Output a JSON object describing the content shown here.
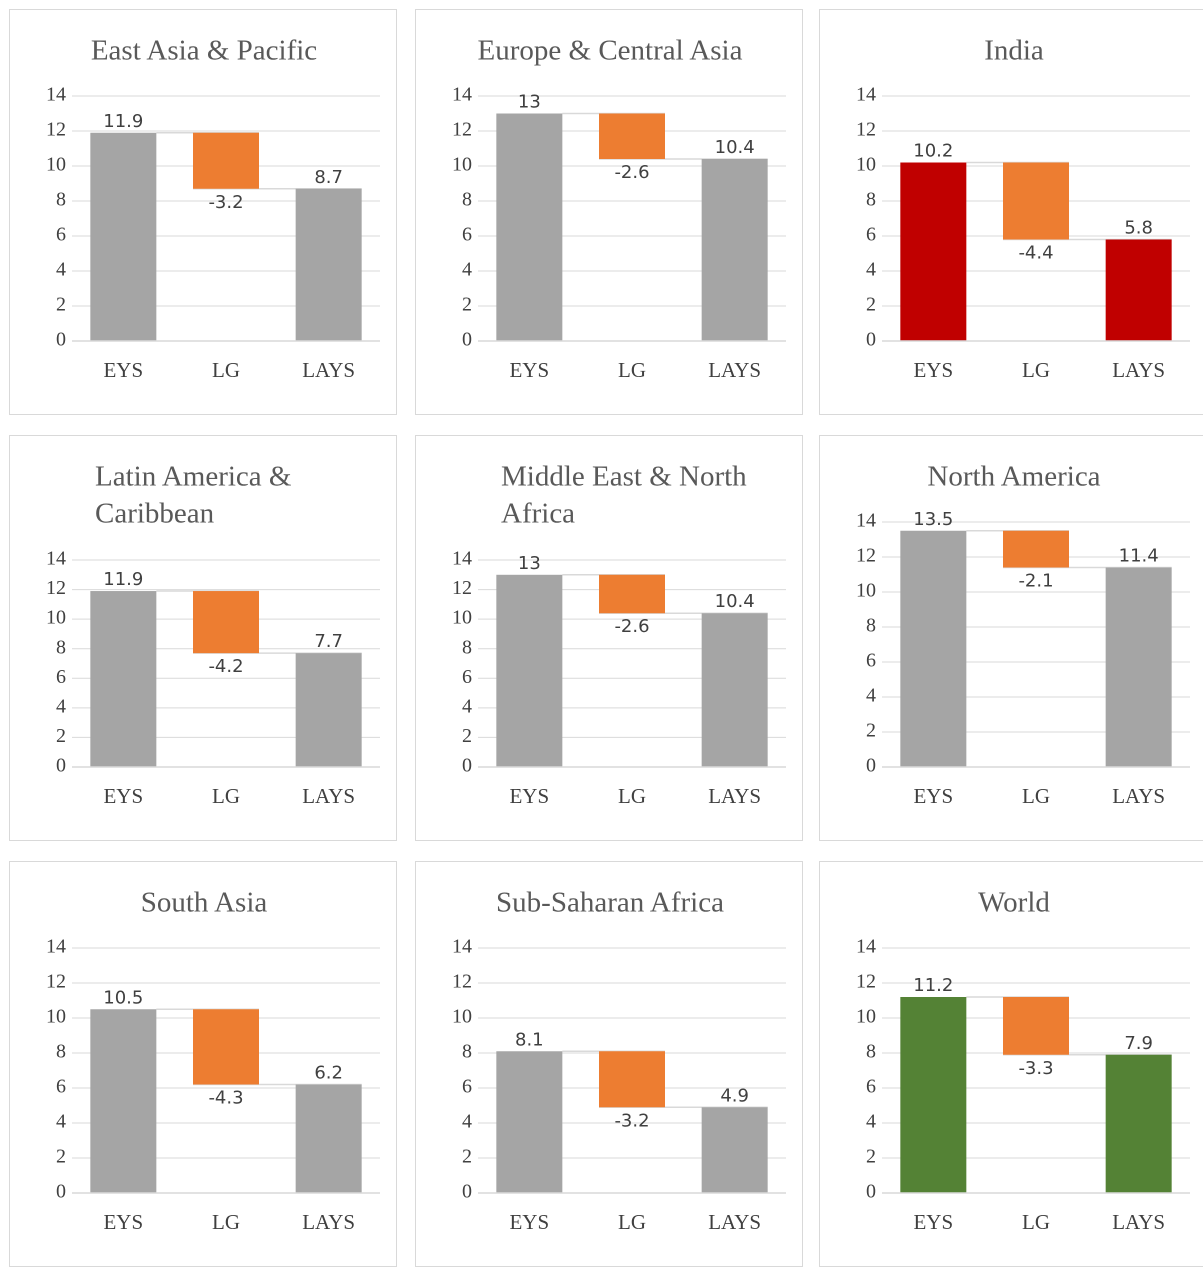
{
  "colors": {
    "gray": "#a5a5a5",
    "orange": "#ed7d31",
    "red": "#c00000",
    "green": "#548235"
  },
  "chart_data": [
    {
      "type": "waterfall",
      "title": [
        "East Asia & Pacific"
      ],
      "categories": [
        "EYS",
        "LG",
        "LAYS"
      ],
      "values": [
        11.9,
        -3.2,
        8.7
      ],
      "labels": [
        "11.9",
        "-3.2",
        "8.7"
      ],
      "ylim": [
        0,
        14
      ],
      "yticks": [
        0,
        2,
        4,
        6,
        8,
        10,
        12,
        14
      ],
      "ytick_labels": [
        "0",
        "2",
        "4",
        "6",
        "8",
        "10",
        "12",
        "14"
      ],
      "grid": true,
      "total_color": "#a5a5a5",
      "change_color": "#ed7d31"
    },
    {
      "type": "waterfall",
      "title": [
        "Europe & Central Asia"
      ],
      "categories": [
        "EYS",
        "LG",
        "LAYS"
      ],
      "values": [
        13,
        -2.6,
        10.4
      ],
      "labels": [
        "13",
        "-2.6",
        "10.4"
      ],
      "ylim": [
        0,
        14
      ],
      "yticks": [
        0,
        2,
        4,
        6,
        8,
        10,
        12,
        14
      ],
      "ytick_labels": [
        "0",
        "2",
        "4",
        "6",
        "8",
        "10",
        "12",
        "14"
      ],
      "grid": true,
      "total_color": "#a5a5a5",
      "change_color": "#ed7d31"
    },
    {
      "type": "waterfall",
      "title": [
        "India"
      ],
      "categories": [
        "EYS",
        "LG",
        "LAYS"
      ],
      "values": [
        10.2,
        -4.4,
        5.8
      ],
      "labels": [
        "10.2",
        "-4.4",
        "5.8"
      ],
      "ylim": [
        0,
        14
      ],
      "yticks": [
        0,
        2,
        4,
        6,
        8,
        10,
        12,
        14
      ],
      "ytick_labels": [
        "0",
        "2",
        "4",
        "6",
        "8",
        "10",
        "12",
        "14"
      ],
      "grid": true,
      "total_color": "#c00000",
      "change_color": "#ed7d31"
    },
    {
      "type": "waterfall",
      "title": [
        "Latin America &",
        "Caribbean"
      ],
      "categories": [
        "EYS",
        "LG",
        "LAYS"
      ],
      "values": [
        11.9,
        -4.2,
        7.7
      ],
      "labels": [
        "11.9",
        "-4.2",
        "7.7"
      ],
      "ylim": [
        0,
        14
      ],
      "yticks": [
        0,
        2,
        4,
        6,
        8,
        10,
        12,
        14
      ],
      "ytick_labels": [
        "0",
        "2",
        "4",
        "6",
        "8",
        "10",
        "12",
        "14"
      ],
      "grid": true,
      "total_color": "#a5a5a5",
      "change_color": "#ed7d31"
    },
    {
      "type": "waterfall",
      "title": [
        "Middle East & North",
        "Africa"
      ],
      "categories": [
        "EYS",
        "LG",
        "LAYS"
      ],
      "values": [
        13,
        -2.6,
        10.4
      ],
      "labels": [
        "13",
        "-2.6",
        "10.4"
      ],
      "ylim": [
        0,
        14
      ],
      "yticks": [
        0,
        2,
        4,
        6,
        8,
        10,
        12,
        14
      ],
      "ytick_labels": [
        "0",
        "2",
        "4",
        "6",
        "8",
        "10",
        "12",
        "14"
      ],
      "grid": true,
      "total_color": "#a5a5a5",
      "change_color": "#ed7d31"
    },
    {
      "type": "waterfall",
      "title": [
        "North America"
      ],
      "categories": [
        "EYS",
        "LG",
        "LAYS"
      ],
      "values": [
        13.5,
        -2.1,
        11.4
      ],
      "labels": [
        "13.5",
        "-2.1",
        "11.4"
      ],
      "ylim": [
        0,
        14
      ],
      "yticks": [
        0,
        2,
        4,
        6,
        8,
        10,
        12,
        14
      ],
      "ytick_labels": [
        "0",
        "2",
        "4",
        "6",
        "8",
        "10",
        "12",
        "14"
      ],
      "grid": true,
      "total_color": "#a5a5a5",
      "change_color": "#ed7d31"
    },
    {
      "type": "waterfall",
      "title": [
        "South Asia"
      ],
      "categories": [
        "EYS",
        "LG",
        "LAYS"
      ],
      "values": [
        10.5,
        -4.3,
        6.2
      ],
      "labels": [
        "10.5",
        "-4.3",
        "6.2"
      ],
      "ylim": [
        0,
        14
      ],
      "yticks": [
        0,
        2,
        4,
        6,
        8,
        10,
        12,
        14
      ],
      "ytick_labels": [
        "0",
        "2",
        "4",
        "6",
        "8",
        "10",
        "12",
        "14"
      ],
      "grid": true,
      "total_color": "#a5a5a5",
      "change_color": "#ed7d31"
    },
    {
      "type": "waterfall",
      "title": [
        "Sub-Saharan Africa"
      ],
      "categories": [
        "EYS",
        "LG",
        "LAYS"
      ],
      "values": [
        8.1,
        -3.2,
        4.9
      ],
      "labels": [
        "8.1",
        "-3.2",
        "4.9"
      ],
      "ylim": [
        0,
        14
      ],
      "yticks": [
        0,
        2,
        4,
        6,
        8,
        10,
        12,
        14
      ],
      "ytick_labels": [
        "0",
        "2",
        "4",
        "6",
        "8",
        "10",
        "12",
        "14"
      ],
      "grid": true,
      "total_color": "#a5a5a5",
      "change_color": "#ed7d31"
    },
    {
      "type": "waterfall",
      "title": [
        "World"
      ],
      "categories": [
        "EYS",
        "LG",
        "LAYS"
      ],
      "values": [
        11.2,
        -3.3,
        7.9
      ],
      "labels": [
        "11.2",
        "-3.3",
        "7.9"
      ],
      "ylim": [
        0,
        14
      ],
      "yticks": [
        0,
        2,
        4,
        6,
        8,
        10,
        12,
        14
      ],
      "ytick_labels": [
        "0",
        "2",
        "4",
        "6",
        "8",
        "10",
        "12",
        "14"
      ],
      "grid": true,
      "total_color": "#548235",
      "change_color": "#ed7d31"
    }
  ]
}
